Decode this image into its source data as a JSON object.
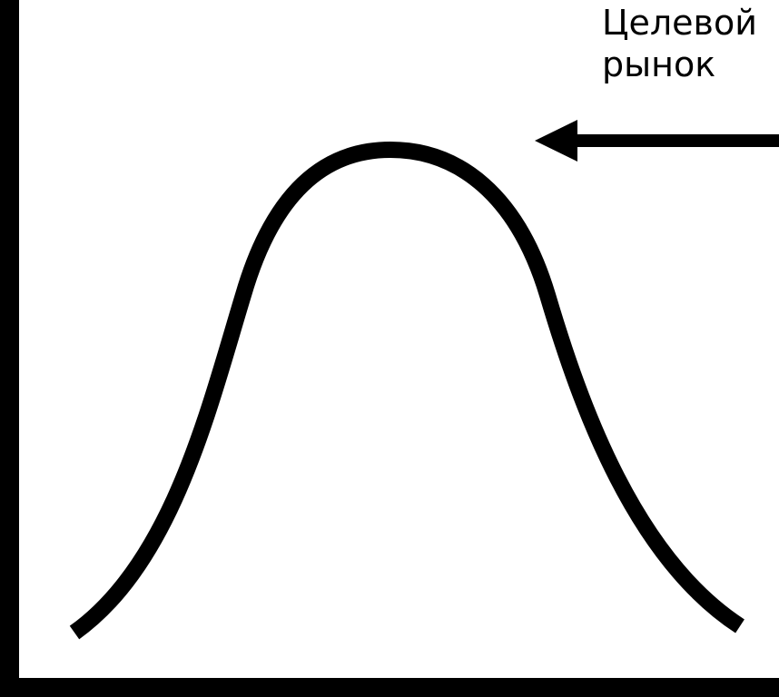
{
  "annotation": {
    "line1": "Целевой",
    "line2": "рынок"
  },
  "colors": {
    "stroke": "#000000",
    "background": "#ffffff"
  }
}
